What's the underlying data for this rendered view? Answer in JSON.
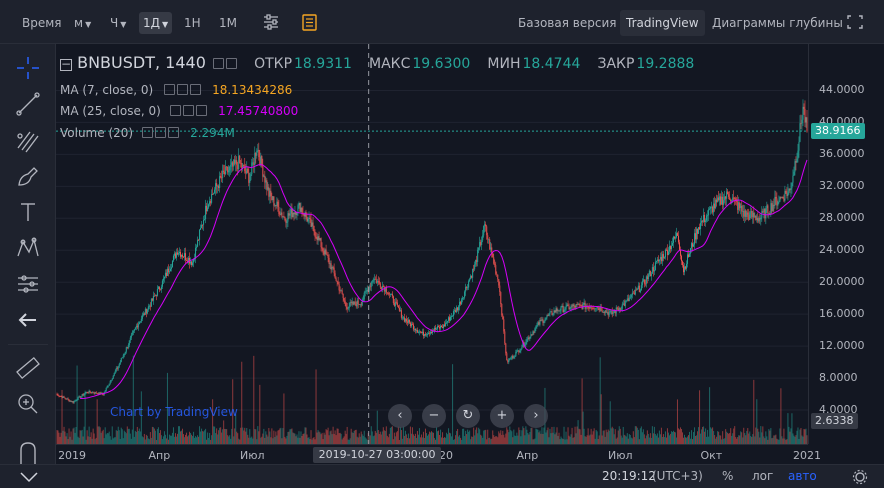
{
  "topbar": {
    "time_label": "Время",
    "minute_label": "м",
    "hour_label": "Ч",
    "day_label": "1Д",
    "tf_1h": "1Н",
    "tf_1m": "1М",
    "basic_version": "Базовая версия",
    "tradingview": "TradingView",
    "depth": "Диаграммы глубины"
  },
  "legend": {
    "symbol": "BNBUSDT, 1440",
    "open_label": "ОТКР",
    "open": "18.9311",
    "high_label": "МАКС",
    "high": "19.6300",
    "low_label": "МИН",
    "low": "18.4744",
    "close_label": "ЗАКР",
    "close": "19.2888",
    "ma7_label": "MA (7, close, 0)",
    "ma7_value": "18.13434286",
    "ma25_label": "MA (25, close, 0)",
    "ma25_value": "17.45740800",
    "vol_label": "Volume (20)",
    "vol_value": "2.294M"
  },
  "price_axis": {
    "labels": [
      "44.0000",
      "40.0000",
      "36.0000",
      "32.0000",
      "28.0000",
      "24.0000",
      "20.0000",
      "16.0000",
      "12.0000",
      "8.0000",
      "4.0000"
    ],
    "current": "38.9166",
    "volume_badge": "2.6338"
  },
  "time_axis": {
    "labels": [
      "2019",
      "Апр",
      "Июл",
      "2020",
      "Апр",
      "Июл",
      "Окт",
      "2021"
    ],
    "crosshair_date": "2019-10-27 03:00:00"
  },
  "bottombar": {
    "time": "20:19:12",
    "tz": "(UTC+3)",
    "pct": "%",
    "log": "лог",
    "auto": "авто"
  },
  "watermark": "Chart by TradingView",
  "colors": {
    "up": "#26a69a",
    "down": "#ef5350",
    "ma7": "#f5a623",
    "ma25": "#d500f9",
    "bg": "#131722"
  },
  "chart_data": {
    "type": "candlestick",
    "symbol": "BNBUSDT",
    "interval": "1440",
    "ylim": [
      2,
      46
    ],
    "x_range": [
      "2018-12-20",
      "2021-01-06"
    ],
    "price_path": [
      [
        "2018-12-20",
        6.0
      ],
      [
        "2019-01-06",
        5.0
      ],
      [
        "2019-01-20",
        6.3
      ],
      [
        "2019-02-05",
        6.0
      ],
      [
        "2019-02-20",
        9.5
      ],
      [
        "2019-03-10",
        14.5
      ],
      [
        "2019-03-25",
        17.5
      ],
      [
        "2019-04-05",
        20.0
      ],
      [
        "2019-04-20",
        24.0
      ],
      [
        "2019-05-05",
        22.5
      ],
      [
        "2019-05-20",
        30.0
      ],
      [
        "2019-06-05",
        33.5
      ],
      [
        "2019-06-20",
        35.0
      ],
      [
        "2019-07-01",
        33.0
      ],
      [
        "2019-07-08",
        37.0
      ],
      [
        "2019-07-20",
        31.0
      ],
      [
        "2019-08-05",
        28.0
      ],
      [
        "2019-08-20",
        29.5
      ],
      [
        "2019-09-05",
        26.0
      ],
      [
        "2019-09-20",
        22.0
      ],
      [
        "2019-10-05",
        17.0
      ],
      [
        "2019-10-20",
        17.5
      ],
      [
        "2019-11-01",
        20.5
      ],
      [
        "2019-11-15",
        19.0
      ],
      [
        "2019-12-01",
        15.5
      ],
      [
        "2019-12-20",
        13.5
      ],
      [
        "2020-01-10",
        14.5
      ],
      [
        "2020-01-25",
        17.0
      ],
      [
        "2020-02-10",
        22.0
      ],
      [
        "2020-02-20",
        27.0
      ],
      [
        "2020-03-05",
        20.0
      ],
      [
        "2020-03-13",
        10.0
      ],
      [
        "2020-03-25",
        11.5
      ],
      [
        "2020-04-15",
        15.0
      ],
      [
        "2020-05-01",
        16.5
      ],
      [
        "2020-05-20",
        17.0
      ],
      [
        "2020-06-10",
        17.0
      ],
      [
        "2020-06-25",
        16.0
      ],
      [
        "2020-07-10",
        17.5
      ],
      [
        "2020-07-25",
        19.5
      ],
      [
        "2020-08-10",
        22.5
      ],
      [
        "2020-08-20",
        24.0
      ],
      [
        "2020-08-30",
        26.0
      ],
      [
        "2020-09-05",
        21.5
      ],
      [
        "2020-09-20",
        27.0
      ],
      [
        "2020-10-05",
        29.5
      ],
      [
        "2020-10-20",
        31.0
      ],
      [
        "2020-11-05",
        28.5
      ],
      [
        "2020-11-20",
        28.0
      ],
      [
        "2020-12-05",
        30.0
      ],
      [
        "2020-12-20",
        31.5
      ],
      [
        "2020-12-28",
        37.0
      ],
      [
        "2021-01-02",
        42.0
      ],
      [
        "2021-01-06",
        38.9
      ]
    ]
  }
}
